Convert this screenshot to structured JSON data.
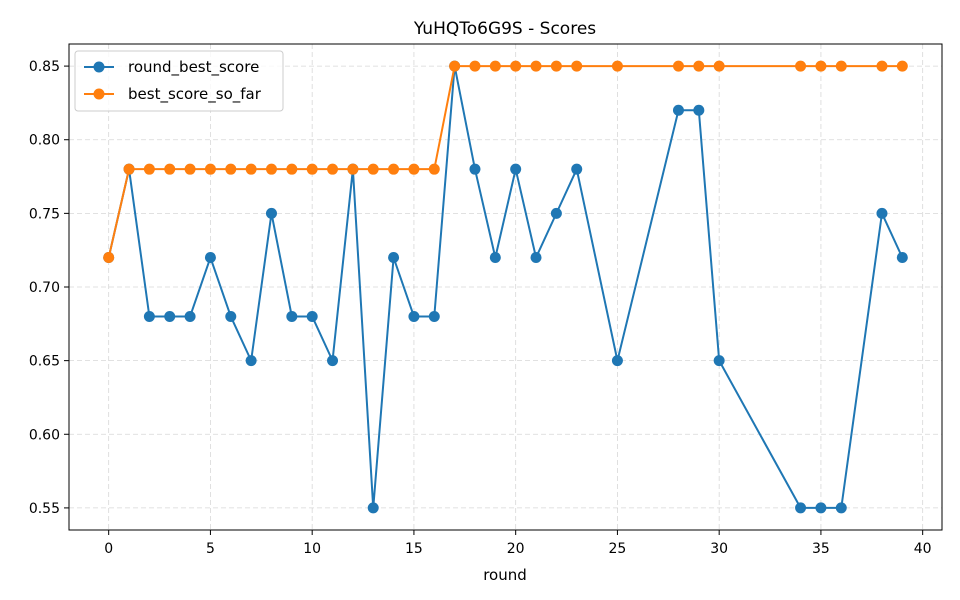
{
  "chart_data": {
    "type": "line",
    "title": "YuHQTo6G9S - Scores",
    "xlabel": "round",
    "ylabel": "",
    "xlim": [
      -1.95,
      40.95
    ],
    "ylim": [
      0.535,
      0.865
    ],
    "xticks": [
      0,
      5,
      10,
      15,
      20,
      25,
      30,
      35,
      40
    ],
    "yticks": [
      0.55,
      0.6,
      0.65,
      0.7,
      0.75,
      0.8,
      0.85
    ],
    "grid": true,
    "legend_position": "top-left",
    "series": [
      {
        "name": "round_best_score",
        "color": "#1f77b4",
        "x": [
          0,
          1,
          2,
          3,
          4,
          5,
          6,
          7,
          8,
          9,
          10,
          11,
          12,
          13,
          14,
          15,
          16,
          17,
          18,
          19,
          20,
          21,
          22,
          23,
          25,
          28,
          29,
          30,
          34,
          35,
          36,
          38,
          39
        ],
        "y": [
          0.72,
          0.78,
          0.68,
          0.68,
          0.68,
          0.72,
          0.68,
          0.65,
          0.75,
          0.68,
          0.68,
          0.65,
          0.78,
          0.55,
          0.72,
          0.68,
          0.68,
          0.85,
          0.78,
          0.72,
          0.78,
          0.72,
          0.75,
          0.78,
          0.65,
          0.82,
          0.82,
          0.65,
          0.55,
          0.55,
          0.55,
          0.75,
          0.72
        ]
      },
      {
        "name": "best_score_so_far",
        "color": "#ff7f0e",
        "x": [
          0,
          1,
          2,
          3,
          4,
          5,
          6,
          7,
          8,
          9,
          10,
          11,
          12,
          13,
          14,
          15,
          16,
          17,
          18,
          19,
          20,
          21,
          22,
          23,
          25,
          28,
          29,
          30,
          34,
          35,
          36,
          38,
          39
        ],
        "y": [
          0.72,
          0.78,
          0.78,
          0.78,
          0.78,
          0.78,
          0.78,
          0.78,
          0.78,
          0.78,
          0.78,
          0.78,
          0.78,
          0.78,
          0.78,
          0.78,
          0.78,
          0.85,
          0.85,
          0.85,
          0.85,
          0.85,
          0.85,
          0.85,
          0.85,
          0.85,
          0.85,
          0.85,
          0.85,
          0.85,
          0.85,
          0.85,
          0.85
        ]
      }
    ]
  }
}
